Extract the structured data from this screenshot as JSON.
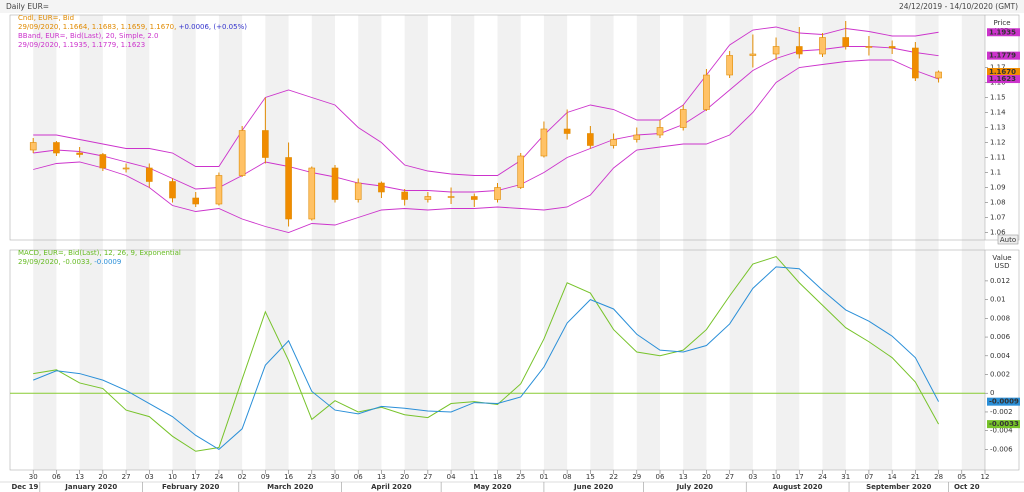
{
  "header": {
    "title": "Daily EUR=",
    "range": "24/12/2019 - 14/10/2020 (GMT)"
  },
  "chart_data": [
    {
      "type": "candlestick",
      "legend": [
        [
          {
            "text": "Cndl, EUR=, Bid",
            "color": "#e08a00"
          }
        ],
        [
          {
            "text": "29/09/2020, 1.1664, 1.1683, 1.1659, 1.1670, ",
            "color": "#e08a00"
          },
          {
            "text": "+0.0006, (+0.05%)",
            "color": "#3333cc"
          }
        ],
        [
          {
            "text": "BBand, EUR=, Bid(Last), 20, Simple, 2.0",
            "color": "#cc33cc"
          }
        ],
        [
          {
            "text": "29/09/2020, 1.1935, 1.1779, 1.1623",
            "color": "#cc33cc"
          }
        ]
      ],
      "ylabel": "Price",
      "yunit": "USD",
      "auto_button": "Auto",
      "xlim": [
        "2019-12-23",
        "2020-10-12"
      ],
      "ylim": [
        1.055,
        1.205
      ],
      "yticks": [
        1.06,
        1.07,
        1.08,
        1.09,
        1.1,
        1.11,
        1.12,
        1.13,
        1.14,
        1.15,
        1.16,
        1.17
      ],
      "up_color": "#ffc266",
      "down_color": "#f08c00",
      "wick_color": "#e08a00",
      "x": [
        "2019-12-30",
        "2020-01-06",
        "2020-01-13",
        "2020-01-20",
        "2020-01-27",
        "2020-02-03",
        "2020-02-10",
        "2020-02-17",
        "2020-02-24",
        "2020-03-02",
        "2020-03-09",
        "2020-03-16",
        "2020-03-23",
        "2020-03-30",
        "2020-04-06",
        "2020-04-13",
        "2020-04-20",
        "2020-04-27",
        "2020-05-04",
        "2020-05-11",
        "2020-05-18",
        "2020-05-25",
        "2020-06-01",
        "2020-06-08",
        "2020-06-15",
        "2020-06-22",
        "2020-06-29",
        "2020-07-06",
        "2020-07-13",
        "2020-07-20",
        "2020-07-27",
        "2020-08-03",
        "2020-08-10",
        "2020-08-17",
        "2020-08-24",
        "2020-08-31",
        "2020-09-07",
        "2020-09-14",
        "2020-09-21",
        "2020-09-28"
      ],
      "open": [
        1.115,
        1.12,
        1.113,
        1.112,
        1.103,
        1.103,
        1.094,
        1.083,
        1.079,
        1.098,
        1.128,
        1.11,
        1.069,
        1.103,
        1.082,
        1.093,
        1.087,
        1.082,
        1.084,
        1.084,
        1.082,
        1.09,
        1.111,
        1.129,
        1.126,
        1.118,
        1.122,
        1.125,
        1.13,
        1.142,
        1.165,
        1.178,
        1.179,
        1.184,
        1.179,
        1.19,
        1.184,
        1.184,
        1.183,
        1.163
      ],
      "high": [
        1.123,
        1.121,
        1.117,
        1.113,
        1.106,
        1.106,
        1.096,
        1.087,
        1.1,
        1.131,
        1.15,
        1.12,
        1.104,
        1.105,
        1.096,
        1.094,
        1.089,
        1.087,
        1.09,
        1.086,
        1.093,
        1.113,
        1.134,
        1.142,
        1.131,
        1.126,
        1.13,
        1.135,
        1.145,
        1.169,
        1.181,
        1.192,
        1.19,
        1.197,
        1.193,
        1.201,
        1.191,
        1.188,
        1.187,
        1.168
      ],
      "low": [
        1.113,
        1.111,
        1.11,
        1.101,
        1.1,
        1.09,
        1.08,
        1.077,
        1.078,
        1.097,
        1.106,
        1.064,
        1.068,
        1.08,
        1.08,
        1.083,
        1.078,
        1.08,
        1.079,
        1.077,
        1.08,
        1.089,
        1.11,
        1.122,
        1.116,
        1.116,
        1.12,
        1.123,
        1.128,
        1.141,
        1.163,
        1.17,
        1.175,
        1.176,
        1.177,
        1.182,
        1.178,
        1.179,
        1.161,
        1.16
      ],
      "close": [
        1.12,
        1.113,
        1.112,
        1.103,
        1.103,
        1.094,
        1.083,
        1.079,
        1.098,
        1.128,
        1.11,
        1.069,
        1.103,
        1.082,
        1.093,
        1.087,
        1.082,
        1.084,
        1.084,
        1.082,
        1.09,
        1.111,
        1.129,
        1.126,
        1.118,
        1.122,
        1.125,
        1.13,
        1.142,
        1.165,
        1.178,
        1.179,
        1.184,
        1.179,
        1.19,
        1.184,
        1.184,
        1.183,
        1.163,
        1.167
      ],
      "bands": {
        "color": "#cc33cc",
        "upper": [
          1.125,
          1.125,
          1.122,
          1.119,
          1.116,
          1.116,
          1.113,
          1.104,
          1.104,
          1.128,
          1.15,
          1.155,
          1.15,
          1.145,
          1.13,
          1.12,
          1.105,
          1.101,
          1.099,
          1.098,
          1.098,
          1.108,
          1.125,
          1.14,
          1.145,
          1.142,
          1.135,
          1.135,
          1.145,
          1.165,
          1.185,
          1.195,
          1.197,
          1.193,
          1.192,
          1.196,
          1.194,
          1.191,
          1.191,
          1.1935
        ],
        "middle": [
          1.113,
          1.115,
          1.114,
          1.111,
          1.107,
          1.103,
          1.096,
          1.089,
          1.09,
          1.098,
          1.107,
          1.104,
          1.1,
          1.097,
          1.093,
          1.091,
          1.088,
          1.088,
          1.087,
          1.087,
          1.088,
          1.092,
          1.1,
          1.11,
          1.116,
          1.122,
          1.125,
          1.126,
          1.132,
          1.142,
          1.155,
          1.168,
          1.176,
          1.181,
          1.182,
          1.184,
          1.184,
          1.183,
          1.18,
          1.1779
        ],
        "lower": [
          1.102,
          1.106,
          1.107,
          1.103,
          1.098,
          1.09,
          1.078,
          1.074,
          1.076,
          1.069,
          1.064,
          1.06,
          1.066,
          1.065,
          1.07,
          1.075,
          1.076,
          1.075,
          1.076,
          1.076,
          1.077,
          1.076,
          1.075,
          1.077,
          1.085,
          1.103,
          1.115,
          1.117,
          1.119,
          1.119,
          1.125,
          1.14,
          1.16,
          1.17,
          1.172,
          1.174,
          1.175,
          1.175,
          1.168,
          1.1623
        ]
      },
      "tags": [
        {
          "value": 1.1935,
          "color": "#cc33cc",
          "text_color": "#ffffff"
        },
        {
          "value": 1.1779,
          "color": "#cc33cc",
          "text_color": "#ffffff"
        },
        {
          "value": 1.167,
          "label": "1.1670",
          "color": "#f08c00",
          "text_color": "#000000"
        },
        {
          "value": 1.1623,
          "color": "#cc33cc",
          "text_color": "#ffffff"
        }
      ]
    },
    {
      "type": "macd",
      "legend": [
        [
          {
            "text": "MACD, EUR=, Bid(Last), 12, 26, 9, Exponential",
            "color": "#66bb22"
          }
        ],
        [
          {
            "text": "29/09/2020, ",
            "color": "#66bb22"
          },
          {
            "text": "-0.0033",
            "color": "#66bb22"
          },
          {
            "text": ", ",
            "color": "#66bb22"
          },
          {
            "text": "-0.0009",
            "color": "#2a8fd8"
          }
        ]
      ],
      "ylabel": "Value",
      "yunit": "USD",
      "xlim": [
        "2019-12-23",
        "2020-10-12"
      ],
      "ylim": [
        -0.0082,
        0.0153
      ],
      "yticks": [
        -0.006,
        -0.004,
        -0.002,
        0,
        0.002,
        0.004,
        0.006,
        0.008,
        0.01,
        0.012
      ],
      "zero_line_color": "#88cc33",
      "x": [
        "2019-12-30",
        "2020-01-06",
        "2020-01-13",
        "2020-01-20",
        "2020-01-27",
        "2020-02-03",
        "2020-02-10",
        "2020-02-17",
        "2020-02-24",
        "2020-03-02",
        "2020-03-09",
        "2020-03-16",
        "2020-03-23",
        "2020-03-30",
        "2020-04-06",
        "2020-04-13",
        "2020-04-20",
        "2020-04-27",
        "2020-05-04",
        "2020-05-11",
        "2020-05-18",
        "2020-05-25",
        "2020-06-01",
        "2020-06-08",
        "2020-06-15",
        "2020-06-22",
        "2020-06-29",
        "2020-07-06",
        "2020-07-13",
        "2020-07-20",
        "2020-07-27",
        "2020-08-03",
        "2020-08-10",
        "2020-08-17",
        "2020-08-24",
        "2020-08-31",
        "2020-09-07",
        "2020-09-14",
        "2020-09-21",
        "2020-09-28"
      ],
      "series": [
        {
          "color": "#77c32a",
          "values": [
            0.0021,
            0.0025,
            0.0011,
            0.0005,
            -0.0018,
            -0.0025,
            -0.0046,
            -0.0062,
            -0.0058,
            0.0015,
            0.0087,
            0.0035,
            -0.0028,
            -0.0008,
            -0.002,
            -0.0015,
            -0.0023,
            -0.0026,
            -0.0011,
            -0.0009,
            -0.0012,
            0.001,
            0.0058,
            0.0118,
            0.0107,
            0.0068,
            0.0044,
            0.004,
            0.0046,
            0.0068,
            0.0104,
            0.0138,
            0.0146,
            0.0118,
            0.0094,
            0.007,
            0.0055,
            0.0038,
            0.0012,
            -0.0033
          ]
        },
        {
          "color": "#2a8fd8",
          "values": [
            0.0014,
            0.0024,
            0.0021,
            0.0014,
            0.0003,
            -0.0011,
            -0.0025,
            -0.0045,
            -0.006,
            -0.0038,
            0.003,
            0.0056,
            0.0002,
            -0.0018,
            -0.0022,
            -0.0014,
            -0.0016,
            -0.0019,
            -0.002,
            -0.001,
            -0.0011,
            -0.0004,
            0.0028,
            0.0075,
            0.01,
            0.009,
            0.0063,
            0.0046,
            0.0044,
            0.0051,
            0.0074,
            0.0112,
            0.0135,
            0.0133,
            0.011,
            0.0089,
            0.0077,
            0.0061,
            0.0038,
            -0.0009
          ]
        }
      ],
      "tags": [
        {
          "value": -0.0009,
          "color": "#2a8fd8",
          "text_color": "#ffffff"
        },
        {
          "value": -0.0033,
          "color": "#77c32a",
          "text_color": "#000000"
        }
      ],
      "xticks": [
        {
          "value": "2019-12-30",
          "label": "30"
        },
        {
          "value": "2020-01-06",
          "label": "06"
        },
        {
          "value": "2020-01-13",
          "label": "13"
        },
        {
          "value": "2020-01-20",
          "label": "20"
        },
        {
          "value": "2020-01-27",
          "label": "27"
        },
        {
          "value": "2020-02-03",
          "label": "03"
        },
        {
          "value": "2020-02-10",
          "label": "10"
        },
        {
          "value": "2020-02-17",
          "label": "17"
        },
        {
          "value": "2020-02-24",
          "label": "24"
        },
        {
          "value": "2020-03-02",
          "label": "02"
        },
        {
          "value": "2020-03-09",
          "label": "09"
        },
        {
          "value": "2020-03-16",
          "label": "16"
        },
        {
          "value": "2020-03-23",
          "label": "23"
        },
        {
          "value": "2020-03-30",
          "label": "30"
        },
        {
          "value": "2020-04-06",
          "label": "06"
        },
        {
          "value": "2020-04-13",
          "label": "13"
        },
        {
          "value": "2020-04-20",
          "label": "20"
        },
        {
          "value": "2020-04-27",
          "label": "27"
        },
        {
          "value": "2020-05-04",
          "label": "04"
        },
        {
          "value": "2020-05-11",
          "label": "11"
        },
        {
          "value": "2020-05-18",
          "label": "18"
        },
        {
          "value": "2020-05-25",
          "label": "25"
        },
        {
          "value": "2020-06-01",
          "label": "01"
        },
        {
          "value": "2020-06-08",
          "label": "08"
        },
        {
          "value": "2020-06-15",
          "label": "15"
        },
        {
          "value": "2020-06-22",
          "label": "22"
        },
        {
          "value": "2020-06-29",
          "label": "29"
        },
        {
          "value": "2020-07-06",
          "label": "06"
        },
        {
          "value": "2020-07-13",
          "label": "13"
        },
        {
          "value": "2020-07-20",
          "label": "20"
        },
        {
          "value": "2020-07-27",
          "label": "27"
        },
        {
          "value": "2020-08-03",
          "label": "03"
        },
        {
          "value": "2020-08-10",
          "label": "10"
        },
        {
          "value": "2020-08-17",
          "label": "17"
        },
        {
          "value": "2020-08-24",
          "label": "24"
        },
        {
          "value": "2020-08-31",
          "label": "31"
        },
        {
          "value": "2020-09-07",
          "label": "07"
        },
        {
          "value": "2020-09-14",
          "label": "14"
        },
        {
          "value": "2020-09-21",
          "label": "21"
        },
        {
          "value": "2020-09-28",
          "label": "28"
        },
        {
          "value": "2020-10-05",
          "label": "05"
        },
        {
          "value": "2020-10-12",
          "label": "12"
        }
      ],
      "months": [
        {
          "value": "2019-12-01",
          "label": "Dec 19"
        },
        {
          "value": "2020-01-01",
          "label": "January 2020"
        },
        {
          "value": "2020-02-01",
          "label": "February 2020"
        },
        {
          "value": "2020-03-01",
          "label": "March 2020"
        },
        {
          "value": "2020-04-01",
          "label": "April 2020"
        },
        {
          "value": "2020-05-01",
          "label": "May 2020"
        },
        {
          "value": "2020-06-01",
          "label": "June 2020"
        },
        {
          "value": "2020-07-01",
          "label": "July 2020"
        },
        {
          "value": "2020-08-01",
          "label": "August 2020"
        },
        {
          "value": "2020-09-01",
          "label": "September 2020"
        },
        {
          "value": "2020-10-01",
          "label": "Oct 20"
        }
      ]
    }
  ]
}
